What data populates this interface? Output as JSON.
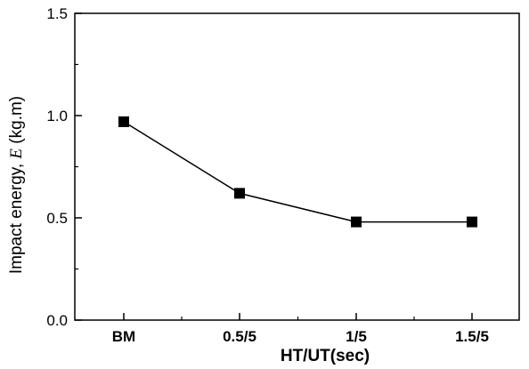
{
  "chart_data": {
    "type": "line",
    "categories": [
      "BM",
      "0.5/5",
      "1/5",
      "1.5/5"
    ],
    "series": [
      {
        "values": [
          0.97,
          0.62,
          0.48,
          0.48
        ],
        "marker": "square",
        "color": "#000000"
      }
    ],
    "xlabel": "HT/UT(sec)",
    "ylabel_prefix": "Impact energy, ",
    "ylabel_symbol": "E",
    "ylabel_suffix": " (kg.m)",
    "ylim": [
      0.0,
      1.5
    ],
    "yticks": [
      "0.0",
      "0.5",
      "1.0",
      "1.5"
    ],
    "grid": false,
    "legend": "none"
  }
}
